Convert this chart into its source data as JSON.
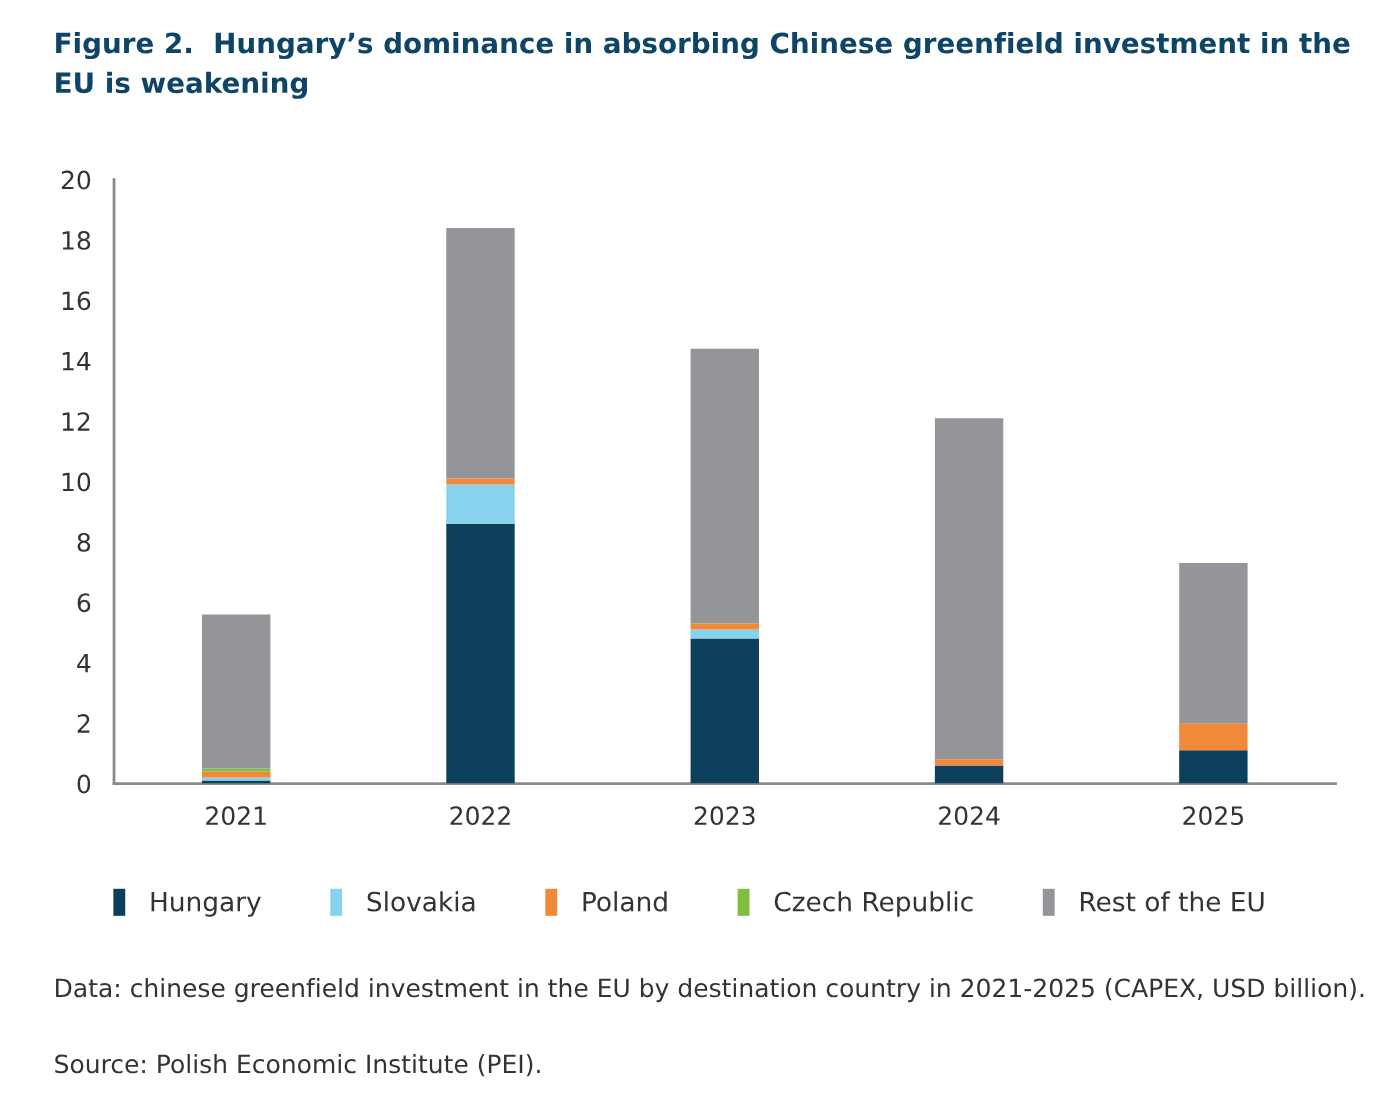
{
  "chart_data": {
    "type": "bar",
    "title": "Figure 2.  Hungary’s dominance in absorbing Chinese greenfield investment in the EU is weakening",
    "categories": [
      "2021",
      "2022",
      "2023",
      "2024",
      "2025"
    ],
    "stacked": true,
    "series": [
      {
        "name": "Hungary",
        "color": "#0b3f5c",
        "values": [
          0.1,
          8.6,
          4.8,
          0.6,
          1.1
        ]
      },
      {
        "name": "Slovakia",
        "color": "#87d3ee",
        "values": [
          0.1,
          1.3,
          0.3,
          0,
          0
        ]
      },
      {
        "name": "Poland",
        "color": "#f08a3a",
        "values": [
          0.2,
          0.2,
          0.2,
          0.2,
          0.9
        ]
      },
      {
        "name": "Czech Republic",
        "color": "#7fbf3f",
        "values": [
          0.1,
          0,
          0,
          0,
          0
        ]
      },
      {
        "name": "Rest of the EU",
        "color": "#939598",
        "values": [
          5.1,
          8.3,
          9.1,
          11.3,
          5.3
        ]
      }
    ],
    "ylim": [
      0,
      20
    ],
    "yticks": [
      0,
      2,
      4,
      6,
      8,
      10,
      12,
      14,
      16,
      18,
      20
    ],
    "legend": "bottom",
    "annotations": [
      "Data: chinese greenfield investment in the EU by destination country in 2021-2025 (CAPEX, USD billion).",
      "Source: Polish Economic Institute (PEI)."
    ]
  }
}
